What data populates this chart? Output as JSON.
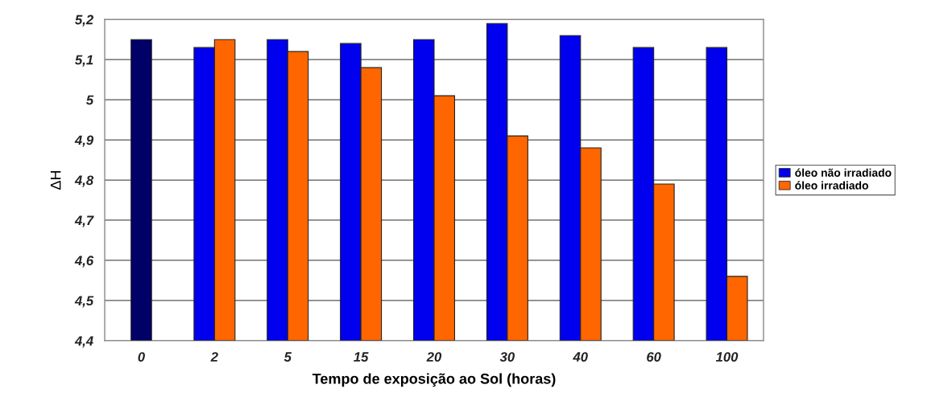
{
  "chart_data": {
    "type": "bar",
    "xlabel": "Tempo de exposição ao Sol (horas)",
    "ylabel": "ΔH",
    "categories": [
      "0",
      "2",
      "5",
      "15",
      "20",
      "30",
      "40",
      "60",
      "100"
    ],
    "series": [
      {
        "name": "óleo não irradiado",
        "color": "#0000ee",
        "colors": [
          "#000066",
          "#0000ee",
          "#0000ee",
          "#0000ee",
          "#0000ee",
          "#0000ee",
          "#0000ee",
          "#0000ee",
          "#0000ee"
        ],
        "values": [
          5.15,
          5.13,
          5.15,
          5.14,
          5.15,
          5.19,
          5.16,
          5.13,
          5.13
        ]
      },
      {
        "name": "óleo irradiado",
        "color": "#ff6600",
        "values": [
          null,
          5.15,
          5.12,
          5.08,
          5.01,
          4.91,
          4.88,
          4.79,
          4.56
        ]
      }
    ],
    "ylim": [
      4.4,
      5.2
    ],
    "yticks": [
      {
        "value": 4.4,
        "label": "4,4"
      },
      {
        "value": 4.5,
        "label": "4,5"
      },
      {
        "value": 4.6,
        "label": "4,6"
      },
      {
        "value": 4.7,
        "label": "4,7"
      },
      {
        "value": 4.8,
        "label": "4,8"
      },
      {
        "value": 4.9,
        "label": "4,9"
      },
      {
        "value": 5.0,
        "label": "5"
      },
      {
        "value": 5.1,
        "label": "5,1"
      },
      {
        "value": 5.2,
        "label": "5,2"
      }
    ],
    "grid": "y",
    "legend": "right"
  }
}
